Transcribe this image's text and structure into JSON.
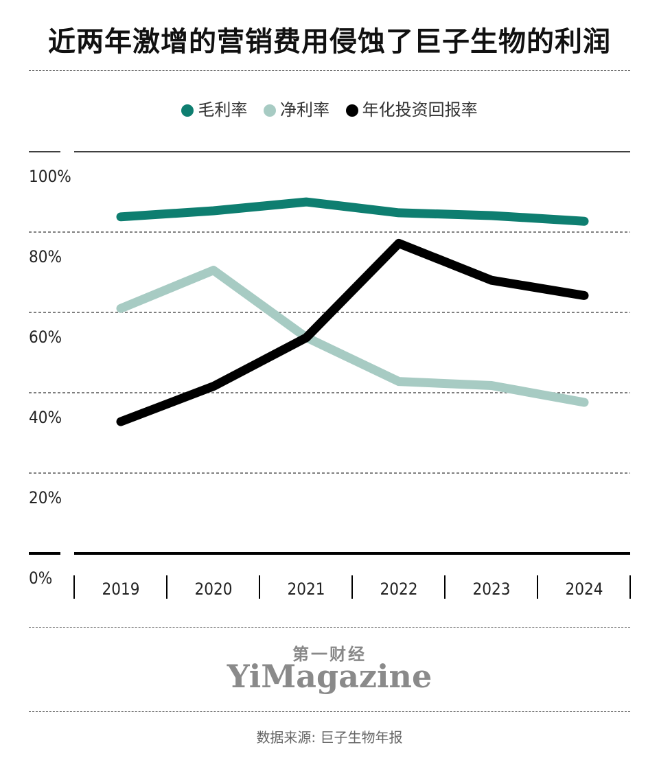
{
  "title": "近两年激增的营销费用侵蚀了巨子生物的利润",
  "chart_data": {
    "type": "line",
    "categories": [
      "2019",
      "2020",
      "2021",
      "2022",
      "2023",
      "2024"
    ],
    "series": [
      {
        "name": "毛利率",
        "color": "#0e7e70",
        "values": [
          83.8,
          85.3,
          87.5,
          84.8,
          84.1,
          82.7
        ]
      },
      {
        "name": "净利率",
        "color": "#a7cbc3",
        "values": [
          61.0,
          70.5,
          53.8,
          42.8,
          41.8,
          37.6
        ]
      },
      {
        "name": "年化投资回报率",
        "color": "#000000",
        "values": [
          32.8,
          41.6,
          53.7,
          77.2,
          68.0,
          64.2
        ]
      }
    ],
    "y_ticks": [
      "0%",
      "20%",
      "40%",
      "60%",
      "80%",
      "100%"
    ],
    "ylim": [
      0,
      100
    ],
    "legend_position": "top-center"
  },
  "logo": {
    "cn": "第一财经",
    "en": "YiMagazine"
  },
  "source": "数据来源: 巨子生物年报"
}
